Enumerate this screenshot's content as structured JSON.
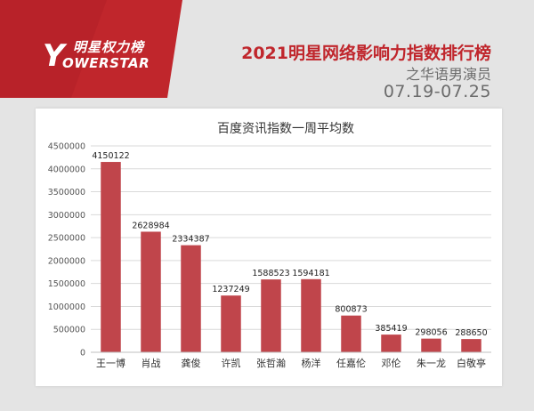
{
  "brand": {
    "logo_cn": "明星权力榜",
    "logo_mark": "Y",
    "logo_en": "OWERSTAR"
  },
  "header": {
    "title": "2021明星网络影响力指数排行榜",
    "subtitle": "之华语男演员",
    "date_range": "07.19-07.25"
  },
  "colors": {
    "accent": "#c0262c",
    "bar": "#c0454b",
    "grid": "#d9d9d9",
    "text": "#333333"
  },
  "chart_data": {
    "type": "bar",
    "title": "百度资讯指数一周平均数",
    "categories": [
      "王一博",
      "肖战",
      "龚俊",
      "许凯",
      "张哲瀚",
      "杨洋",
      "任嘉伦",
      "邓伦",
      "朱一龙",
      "白敬亭"
    ],
    "values": [
      4150122,
      2628984,
      2334387,
      1237249,
      1588523,
      1594181,
      800873,
      385419,
      298056,
      288650
    ],
    "data_labels": [
      "4150122",
      "2628984",
      "2334387",
      "1237249",
      "1588523",
      "1594181",
      "800873",
      "385419",
      "298056",
      "288650"
    ],
    "yticks": [
      0,
      500000,
      1000000,
      1500000,
      2000000,
      2500000,
      3000000,
      3500000,
      4000000,
      4500000
    ],
    "ytick_labels": [
      "0",
      "500000",
      "1000000",
      "1500000",
      "2000000",
      "2500000",
      "3000000",
      "3500000",
      "4000000",
      "4500000"
    ],
    "ylim": [
      0,
      4500000
    ],
    "grid": true,
    "xlabel": "",
    "ylabel": ""
  }
}
